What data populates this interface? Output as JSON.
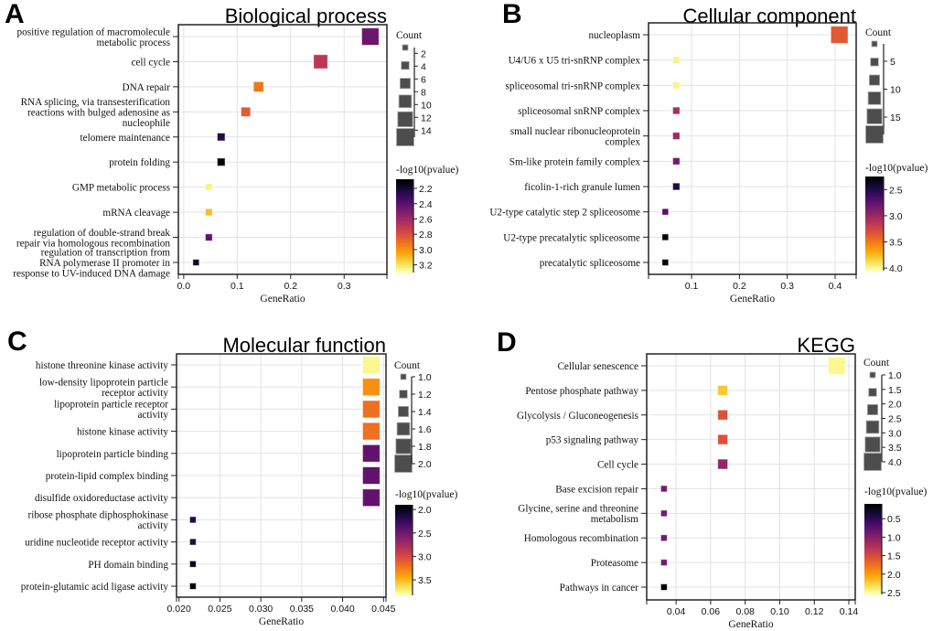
{
  "chart_data": [
    {
      "type": "scatter",
      "panel_letter": "A",
      "title": "Biological process",
      "xlabel": "GeneRatio",
      "xlim": [
        -0.01,
        0.38
      ],
      "xticks": [
        0.0,
        0.1,
        0.2,
        0.3
      ],
      "xtick_labels": [
        "0.0",
        "0.1",
        "0.2",
        "0.3"
      ],
      "grid": true,
      "categories": [
        [
          "positive regulation of macromolecule",
          "metabolic process"
        ],
        [
          "cell cycle"
        ],
        [
          "DNA repair"
        ],
        [
          "RNA splicing, via transesterification",
          "reactions with bulged adenosine as",
          "nucleophile"
        ],
        [
          "telomere maintenance"
        ],
        [
          "protein folding"
        ],
        [
          "GMP metabolic process"
        ],
        [
          "mRNA cleavage"
        ],
        [
          "regulation of double-strand break",
          "repair via homologous recombination"
        ],
        [
          "regulation of transcription from",
          "RNA polymerase II promoter in",
          "response to UV-induced DNA damage"
        ]
      ],
      "gene_ratio": [
        0.349,
        0.256,
        0.14,
        0.116,
        0.07,
        0.07,
        0.047,
        0.047,
        0.047,
        0.023
      ],
      "count": [
        15,
        11,
        6,
        5,
        3,
        3,
        2,
        2,
        2,
        1
      ],
      "neg_log10_pvalue": [
        2.45,
        2.69,
        2.93,
        2.84,
        2.24,
        2.1,
        3.26,
        3.12,
        2.42,
        2.18
      ],
      "size_legend": {
        "title": "Count",
        "range": [
          1.1,
          15.1
        ],
        "ticks": [
          2,
          4,
          6,
          8,
          10,
          12,
          14
        ],
        "tick_labels": [
          "2",
          "4",
          "6",
          "8",
          "10",
          "12",
          "14"
        ]
      },
      "color_legend": {
        "title": "-log10(pvalue)",
        "colormap": "inferno",
        "range": [
          2.08,
          3.3
        ],
        "ticks": [
          2.2,
          2.4,
          2.6,
          2.8,
          3.0,
          3.2
        ],
        "tick_labels": [
          "2.2",
          "2.4",
          "2.6",
          "2.8",
          "3.0",
          "3.2"
        ]
      }
    },
    {
      "type": "scatter",
      "panel_letter": "B",
      "title": "Cellular component",
      "xlabel": "GeneRatio",
      "xlim": [
        0.01,
        0.444
      ],
      "xticks": [
        0.1,
        0.2,
        0.3,
        0.4
      ],
      "xtick_labels": [
        "0.1",
        "0.2",
        "0.3",
        "0.4"
      ],
      "grid": true,
      "categories": [
        [
          "nucleoplasm"
        ],
        [
          "U4/U6 x U5 tri-snRNP complex"
        ],
        [
          "spliceosomal tri-snRNP complex"
        ],
        [
          "spliceosomal snRNP complex"
        ],
        [
          "small nuclear ribonucleoprotein",
          "complex"
        ],
        [
          "Sm-like protein family complex"
        ],
        [
          "ficolin-1-rich granule lumen"
        ],
        [
          "U2-type catalytic step 2 spliceosome"
        ],
        [
          "U2-type precatalytic spliceosome"
        ],
        [
          "precatalytic spliceosome"
        ]
      ],
      "gene_ratio": [
        0.409,
        0.068,
        0.068,
        0.068,
        0.068,
        0.068,
        0.068,
        0.045,
        0.045,
        0.045
      ],
      "count": [
        18,
        3,
        3,
        3,
        3,
        3,
        3,
        2,
        2,
        2
      ],
      "neg_log10_pvalue": [
        3.37,
        4.0,
        4.0,
        3.06,
        3.01,
        2.84,
        2.47,
        2.7,
        2.27,
        2.27
      ],
      "size_legend": {
        "title": "Count",
        "range": [
          1.9,
          18.1
        ],
        "ticks": [
          5,
          10,
          15
        ],
        "tick_labels": [
          "5",
          "10",
          "15"
        ]
      },
      "color_legend": {
        "title": "-log10(pvalue)",
        "colormap": "inferno",
        "range": [
          2.25,
          4.05
        ],
        "ticks": [
          2.5,
          3.0,
          3.5,
          4.0
        ],
        "tick_labels": [
          "2.5",
          "3.0",
          "3.5",
          "4.0"
        ]
      }
    },
    {
      "type": "scatter",
      "panel_letter": "C",
      "title": "Molecular function",
      "xlabel": "GeneRatio",
      "xlim": [
        0.0197,
        0.0453
      ],
      "xticks": [
        0.02,
        0.025,
        0.03,
        0.035,
        0.04,
        0.045
      ],
      "xtick_labels": [
        "0.020",
        "0.025",
        "0.030",
        "0.035",
        "0.040",
        "0.045"
      ],
      "grid": true,
      "categories": [
        [
          "histone threonine kinase activity"
        ],
        [
          "low-density lipoprotein particle",
          "receptor activity"
        ],
        [
          "lipoprotein particle receptor",
          "activity"
        ],
        [
          "histone kinase activity"
        ],
        [
          "lipoprotein particle binding"
        ],
        [
          "protein-lipid complex binding"
        ],
        [
          "disulfide oxidoreductase activity"
        ],
        [
          "ribose phosphate diphosphokinase",
          "activity"
        ],
        [
          "uridine nucleotide receptor activity"
        ],
        [
          "PH domain binding"
        ],
        [
          "protein-glutamic acid ligase activity"
        ]
      ],
      "gene_ratio": [
        0.0435,
        0.0435,
        0.0435,
        0.0435,
        0.0435,
        0.0435,
        0.0435,
        0.0217,
        0.0217,
        0.0217,
        0.0217
      ],
      "count": [
        2,
        2,
        2,
        2,
        2,
        2,
        2,
        1,
        1,
        1,
        1
      ],
      "neg_log10_pvalue": [
        3.79,
        3.35,
        3.21,
        3.21,
        2.44,
        2.44,
        2.44,
        2.13,
        2.13,
        2.0,
        1.92
      ],
      "size_legend": {
        "title": "Count",
        "range": [
          1.0,
          2.0
        ],
        "ticks": [
          1.0,
          1.2,
          1.4,
          1.6,
          1.8,
          2.0
        ],
        "tick_labels": [
          "1.0",
          "1.2",
          "1.4",
          "1.6",
          "1.8",
          "2.0"
        ]
      },
      "color_legend": {
        "title": "-log10(pvalue)",
        "colormap": "inferno",
        "range": [
          1.9,
          3.83
        ],
        "ticks": [
          2.0,
          2.5,
          3.0,
          3.5
        ],
        "tick_labels": [
          "2.0",
          "2.5",
          "3.0",
          "3.5"
        ]
      }
    },
    {
      "type": "scatter",
      "panel_letter": "D",
      "title": "KEGG",
      "xlabel": "GeneRatio",
      "xlim": [
        0.023,
        0.1437
      ],
      "xticks": [
        0.04,
        0.06,
        0.08,
        0.1,
        0.12,
        0.14
      ],
      "xtick_labels": [
        "0.04",
        "0.06",
        "0.08",
        "0.10",
        "0.12",
        "0.14"
      ],
      "grid": true,
      "categories": [
        [
          "Cellular senescence"
        ],
        [
          "Pentose phosphate pathway"
        ],
        [
          "Glycolysis / Gluconeogenesis"
        ],
        [
          "p53 signaling pathway"
        ],
        [
          "Cell cycle"
        ],
        [
          "Base excision repair"
        ],
        [
          "Glycine, serine and threonine",
          "metabolism"
        ],
        [
          "Homologous recombination"
        ],
        [
          "Proteasome"
        ],
        [
          "Pathways in cancer"
        ]
      ],
      "gene_ratio": [
        0.133,
        0.067,
        0.067,
        0.067,
        0.067,
        0.033,
        0.033,
        0.033,
        0.033,
        0.033
      ],
      "count": [
        4,
        2,
        2,
        2,
        2,
        1,
        1,
        1,
        1,
        1
      ],
      "neg_log10_pvalue": [
        2.5,
        2.23,
        1.57,
        1.57,
        1.08,
        0.88,
        0.88,
        0.88,
        0.88,
        0.1
      ],
      "size_legend": {
        "title": "Count",
        "range": [
          1.0,
          4.0
        ],
        "ticks": [
          1.0,
          1.5,
          2.0,
          2.5,
          3.0,
          3.5,
          4.0
        ],
        "tick_labels": [
          "1.0",
          "1.5",
          "2.0",
          "2.5",
          "3.0",
          "3.5",
          "4.0"
        ]
      },
      "color_legend": {
        "title": "-log10(pvalue)",
        "colormap": "inferno",
        "range": [
          0.1,
          2.55
        ],
        "ticks": [
          0.5,
          1.0,
          1.5,
          2.0,
          2.5
        ],
        "tick_labels": [
          "0.5",
          "1.0",
          "1.5",
          "2.0",
          "2.5"
        ]
      }
    }
  ]
}
